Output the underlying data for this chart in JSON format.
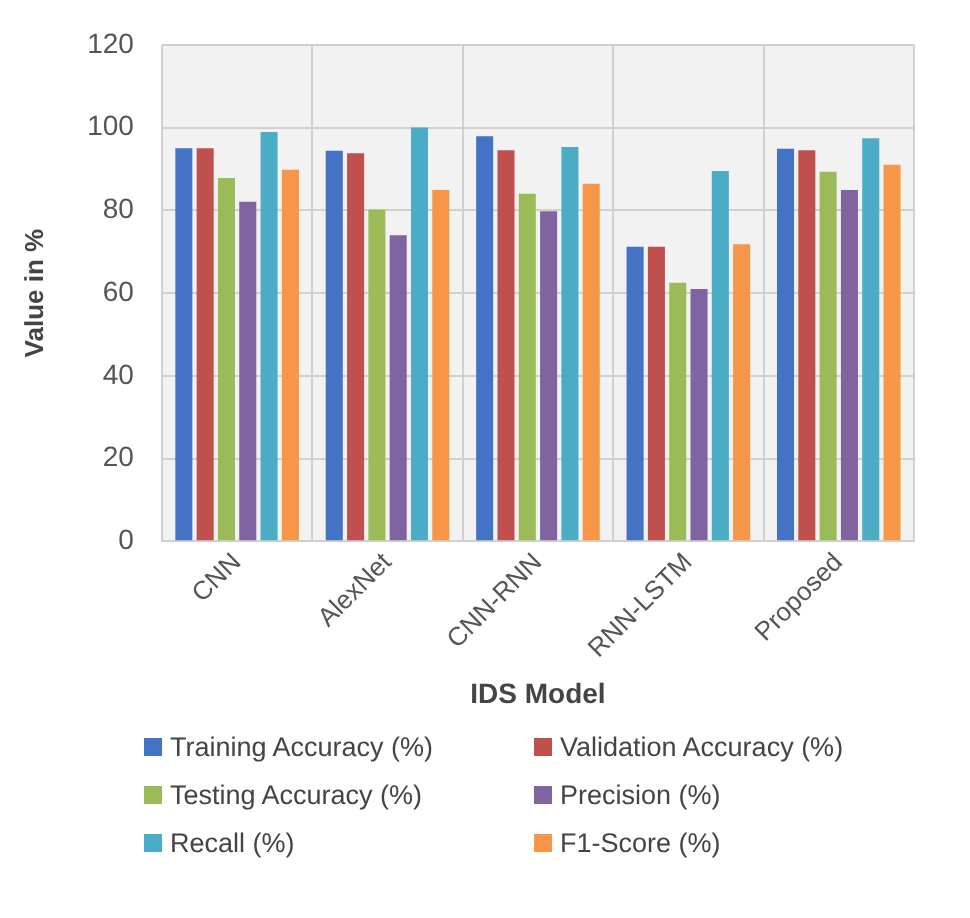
{
  "chart_data": {
    "type": "bar",
    "xlabel": "IDS Model",
    "ylabel": "Value in %",
    "categories": [
      "CNN",
      "AlexNet",
      "CNN-RNN",
      "RNN-LSTM",
      "Proposed"
    ],
    "series": [
      {
        "name": "Training Accuracy (%)",
        "color": "#4472c4",
        "values": [
          95,
          94.4,
          97.9,
          71.2,
          94.9
        ]
      },
      {
        "name": "Validation Accuracy (%)",
        "color": "#c0504d",
        "values": [
          95,
          93.8,
          94.5,
          71.2,
          94.5
        ]
      },
      {
        "name": "Testing Accuracy (%)",
        "color": "#9bbb59",
        "values": [
          87.8,
          80.2,
          84,
          62.5,
          89.3
        ]
      },
      {
        "name": "Precision (%)",
        "color": "#8064a2",
        "values": [
          82.1,
          74,
          79.8,
          61,
          84.9
        ]
      },
      {
        "name": "Recall (%)",
        "color": "#4bacc6",
        "values": [
          98.9,
          100,
          95.3,
          89.5,
          97.4
        ]
      },
      {
        "name": "F1-Score (%)",
        "color": "#f79646",
        "values": [
          89.8,
          84.9,
          86.4,
          71.8,
          91
        ]
      }
    ],
    "ylim": [
      0,
      120
    ],
    "yticks": [
      0,
      20,
      40,
      60,
      80,
      100,
      120
    ],
    "grid": true,
    "legend": "bottom"
  }
}
